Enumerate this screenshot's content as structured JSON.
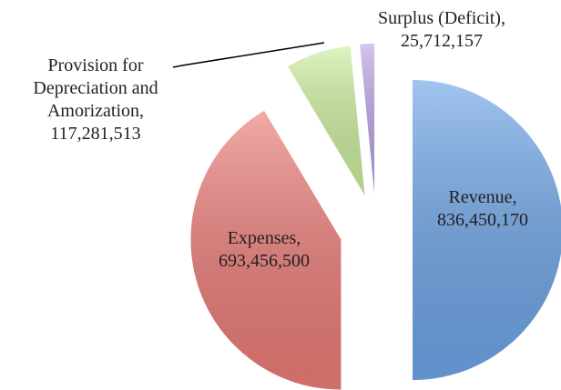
{
  "chart_data": {
    "type": "pie",
    "categories": [
      "Revenue,",
      "Expenses,",
      "Provision for Depreciation and Amorization,",
      "Surplus (Deficit),"
    ],
    "values": [
      836450170,
      693456500,
      117281513,
      25712157
    ],
    "value_labels": [
      "836,450,170",
      "693,456,500",
      "117,281,513",
      "25,712,157"
    ],
    "colors": [
      "#6fa6e8",
      "#ec7d79",
      "#cdef9f",
      "#bba6e6"
    ]
  }
}
